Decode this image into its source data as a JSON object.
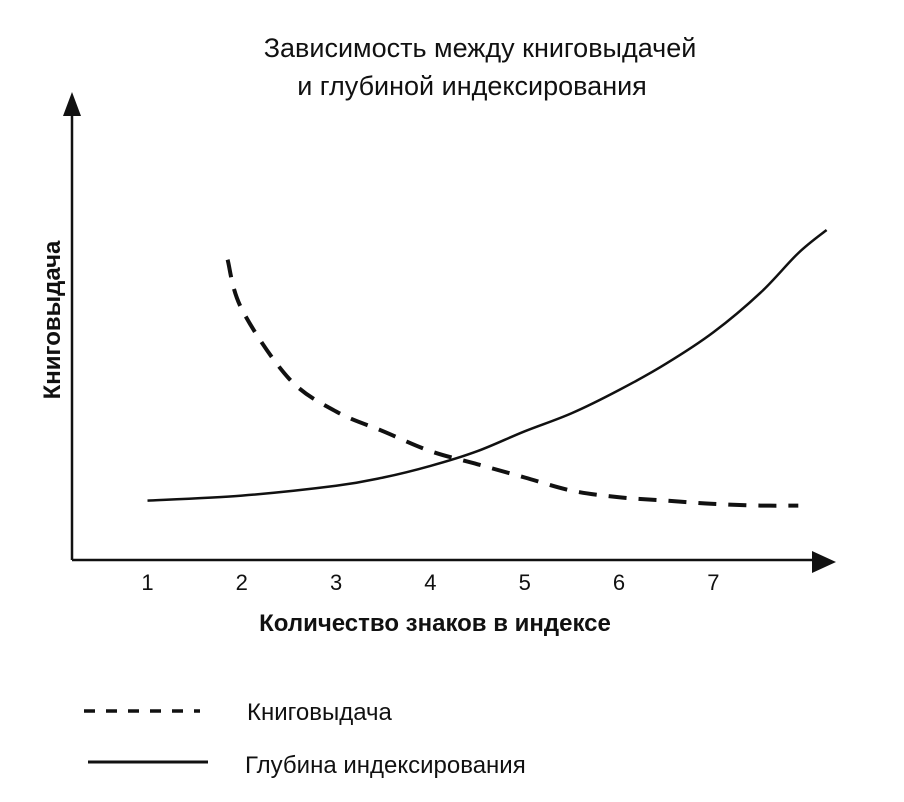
{
  "chart_data": {
    "type": "line",
    "title_lines": [
      "Зависимость между книговыдачей",
      "и глубиной индексирования"
    ],
    "xlabel": "Количество знаков в индексе",
    "ylabel": "Книговыдача",
    "x_ticks": [
      "1",
      "2",
      "3",
      "4",
      "5",
      "6",
      "7"
    ],
    "xlim": [
      0.2,
      8.3
    ],
    "ylim": [
      0,
      10
    ],
    "grid": false,
    "y_ticks_shown": false,
    "legend_position": "bottom-left",
    "series": [
      {
        "name": "Книговыдача",
        "style": "dashed",
        "color": "#111111",
        "x": [
          1.85,
          2.0,
          2.5,
          3.0,
          3.5,
          4.0,
          4.5,
          5.0,
          5.5,
          6.0,
          6.5,
          7.0,
          7.5,
          7.9
        ],
        "y": [
          9.1,
          7.6,
          5.5,
          4.5,
          3.9,
          3.3,
          2.9,
          2.5,
          2.1,
          1.9,
          1.8,
          1.7,
          1.65,
          1.65
        ]
      },
      {
        "name": "Глубина индексирования",
        "style": "solid",
        "color": "#111111",
        "x": [
          1.0,
          2.0,
          3.0,
          3.5,
          4.0,
          4.5,
          5.0,
          5.5,
          6.0,
          6.5,
          7.0,
          7.5,
          7.9,
          8.2
        ],
        "y": [
          1.8,
          1.95,
          2.25,
          2.5,
          2.85,
          3.3,
          3.9,
          4.45,
          5.15,
          5.95,
          6.9,
          8.1,
          9.3,
          10.0
        ]
      }
    ]
  }
}
